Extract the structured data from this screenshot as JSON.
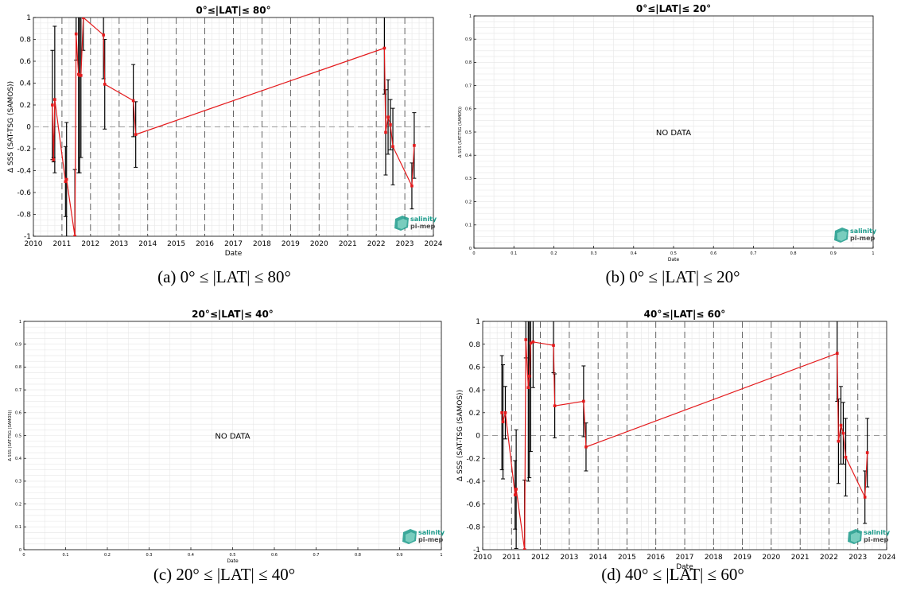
{
  "logo": {
    "line1": "salinity",
    "line2": "pi-mep"
  },
  "colors": {
    "series": "#e41a1c",
    "errorbar": "#000000",
    "grid": "#e6e6e6",
    "zero_line": "#9a9a9a",
    "year_line": "#555555",
    "logo": "#1a9a8a"
  },
  "chart_data": [
    {
      "type": "line",
      "title": "0°≤|LAT|≤ 80°",
      "caption": "(a) 0° ≤ |LAT| ≤ 80°",
      "xlabel": "Date",
      "ylabel": "Δ SSS (SAT-TSG (SAMOS))",
      "x_axis": "date",
      "xlim": [
        "2010-01-01",
        "2024-01-01"
      ],
      "ylim": [
        -1,
        1
      ],
      "xticks": [
        "2010",
        "2011",
        "2012",
        "2013",
        "2014",
        "2015",
        "2016",
        "2017",
        "2018",
        "2019",
        "2020",
        "2021",
        "2022",
        "2023",
        "2024"
      ],
      "yticks": [
        "-1",
        "-0.8",
        "-0.6",
        "-0.4",
        "-0.2",
        "0",
        "0.2",
        "0.4",
        "0.6",
        "0.8",
        "1"
      ],
      "grid": true,
      "no_data_text": "",
      "series": [
        {
          "x": [
            "2010-09-01",
            "2010-09-15",
            "2010-10-01",
            "2011-02-15",
            "2011-03-01",
            "2011-06-15",
            "2011-07-01",
            "2011-08-01",
            "2011-08-15",
            "2011-09-01",
            "2011-10-01",
            "2012-06-15",
            "2012-07-01",
            "2013-07-01",
            "2013-08-01",
            "2022-04-15",
            "2022-05-01",
            "2022-06-01",
            "2022-07-01",
            "2022-08-01",
            "2023-04-01",
            "2023-05-01"
          ],
          "y": [
            0.2,
            -0.3,
            0.25,
            -0.5,
            -0.48,
            -1.0,
            0.85,
            0.48,
            0.47,
            0.47,
            1.0,
            0.84,
            0.39,
            0.24,
            -0.07,
            0.72,
            -0.05,
            0.09,
            0.02,
            -0.18,
            -0.54,
            -0.17
          ],
          "err": [
            0.5,
            0.02,
            0.67,
            0.32,
            0.52,
            0.61,
            0.24,
            0.9,
            0.89,
            0.75,
            0.3,
            0.4,
            0.41,
            0.33,
            0.3,
            0.42,
            0.39,
            0.34,
            0.23,
            0.35,
            0.21,
            0.3
          ]
        }
      ]
    },
    {
      "type": "line",
      "title": "0°≤|LAT|≤ 20°",
      "caption": "(b) 0° ≤ |LAT| ≤ 20°",
      "xlabel": "Date",
      "ylabel": "Δ SSS (SAT-TSG (SAMOS))",
      "x_axis": "numeric",
      "xlim": [
        0,
        1
      ],
      "ylim": [
        0,
        1
      ],
      "xticks": [
        "0",
        "0.1",
        "0.2",
        "0.3",
        "0.4",
        "0.5",
        "0.6",
        "0.7",
        "0.8",
        "0.9",
        "1"
      ],
      "yticks": [
        "0",
        "0.1",
        "0.2",
        "0.3",
        "0.4",
        "0.5",
        "0.6",
        "0.7",
        "0.8",
        "0.9",
        "1"
      ],
      "grid": true,
      "no_data_text": "NO DATA",
      "series": []
    },
    {
      "type": "line",
      "title": "20°≤|LAT|≤ 40°",
      "caption": "(c) 20° ≤ |LAT| ≤ 40°",
      "xlabel": "Date",
      "ylabel": "Δ SSS (SAT-TSG (SAMOS))",
      "x_axis": "numeric",
      "xlim": [
        0,
        1
      ],
      "ylim": [
        0,
        1
      ],
      "xticks": [
        "0",
        "0.1",
        "0.2",
        "0.3",
        "0.4",
        "0.5",
        "0.6",
        "0.7",
        "0.8",
        "0.9",
        "1"
      ],
      "yticks": [
        "0",
        "0.1",
        "0.2",
        "0.3",
        "0.4",
        "0.5",
        "0.6",
        "0.7",
        "0.8",
        "0.9",
        "1"
      ],
      "grid": true,
      "no_data_text": "NO DATA",
      "series": []
    },
    {
      "type": "line",
      "title": "40°≤|LAT|≤ 60°",
      "caption": "(d) 40° ≤ |LAT| ≤ 60°",
      "xlabel": "Date",
      "ylabel": "Δ SSS (SAT-TSG (SAMOS))",
      "x_axis": "date",
      "xlim": [
        "2010-01-01",
        "2024-01-01"
      ],
      "ylim": [
        -1,
        1
      ],
      "xticks": [
        "2010",
        "2011",
        "2012",
        "2013",
        "2014",
        "2015",
        "2016",
        "2017",
        "2018",
        "2019",
        "2020",
        "2021",
        "2022",
        "2023",
        "2024"
      ],
      "yticks": [
        "-1",
        "-0.8",
        "-0.6",
        "-0.4",
        "-0.2",
        "0",
        "0.2",
        "0.4",
        "0.6",
        "0.8",
        "1"
      ],
      "grid": true,
      "no_data_text": "",
      "series": [
        {
          "x": [
            "2010-09-01",
            "2010-09-15",
            "2010-10-15",
            "2011-02-15",
            "2011-03-01",
            "2011-06-15",
            "2011-07-01",
            "2011-08-01",
            "2011-08-15",
            "2011-09-01",
            "2011-10-01",
            "2012-06-15",
            "2012-07-01",
            "2013-07-01",
            "2013-08-01",
            "2022-04-15",
            "2022-05-01",
            "2022-06-01",
            "2022-07-01",
            "2022-08-01",
            "2023-04-01",
            "2023-05-01"
          ],
          "y": [
            0.2,
            0.12,
            0.2,
            -0.52,
            -0.47,
            -1.0,
            0.84,
            0.42,
            0.52,
            0.81,
            0.82,
            0.79,
            0.26,
            0.3,
            -0.1,
            0.72,
            -0.05,
            0.09,
            0.02,
            -0.19,
            -0.54,
            -0.15
          ],
          "err": [
            0.5,
            0.5,
            0.23,
            0.3,
            0.52,
            0.61,
            0.16,
            0.82,
            0.89,
            0.95,
            0.4,
            0.24,
            0.28,
            0.31,
            0.21,
            0.42,
            0.37,
            0.34,
            0.27,
            0.34,
            0.23,
            0.3
          ]
        }
      ]
    }
  ]
}
